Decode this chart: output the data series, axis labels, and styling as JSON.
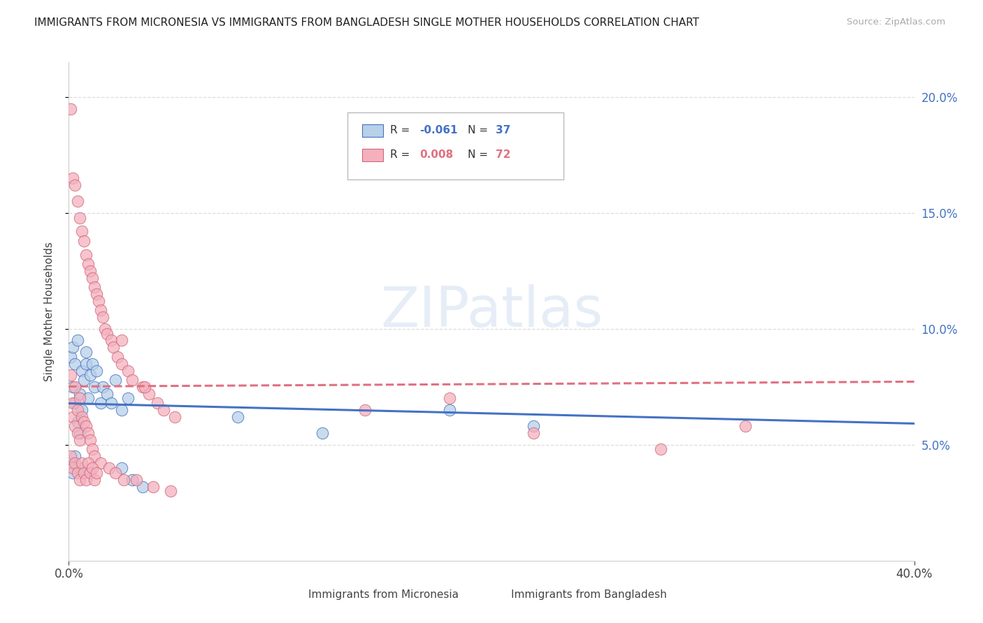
{
  "title": "IMMIGRANTS FROM MICRONESIA VS IMMIGRANTS FROM BANGLADESH SINGLE MOTHER HOUSEHOLDS CORRELATION CHART",
  "source": "Source: ZipAtlas.com",
  "ylabel": "Single Mother Households",
  "xlim": [
    0.0,
    0.4
  ],
  "ylim": [
    0.0,
    0.215
  ],
  "yticks": [
    0.05,
    0.1,
    0.15,
    0.2
  ],
  "ytick_labels": [
    "5.0%",
    "10.0%",
    "15.0%",
    "20.0%"
  ],
  "xtick_labels": [
    "0.0%",
    "40.0%"
  ],
  "legend_blue_r": "-0.061",
  "legend_blue_n": "37",
  "legend_pink_r": "0.008",
  "legend_pink_n": "72",
  "legend_label_blue": "Immigrants from Micronesia",
  "legend_label_pink": "Immigrants from Bangladesh",
  "color_blue_fill": "#b8d0e8",
  "color_blue_edge": "#4472c4",
  "color_pink_fill": "#f4b0be",
  "color_pink_edge": "#d06878",
  "color_blue_line": "#4472c4",
  "color_pink_line": "#e07080",
  "grid_color": "#dddddd",
  "r_micro": -0.061,
  "r_bangla": 0.008,
  "micro_x": [
    0.001,
    0.002,
    0.002,
    0.003,
    0.003,
    0.004,
    0.004,
    0.005,
    0.005,
    0.006,
    0.006,
    0.007,
    0.008,
    0.008,
    0.009,
    0.01,
    0.011,
    0.012,
    0.013,
    0.015,
    0.016,
    0.018,
    0.02,
    0.022,
    0.025,
    0.028,
    0.001,
    0.002,
    0.003,
    0.005,
    0.08,
    0.12,
    0.18,
    0.22,
    0.025,
    0.03,
    0.035
  ],
  "micro_y": [
    0.088,
    0.075,
    0.092,
    0.068,
    0.085,
    0.06,
    0.095,
    0.055,
    0.072,
    0.065,
    0.082,
    0.078,
    0.09,
    0.085,
    0.07,
    0.08,
    0.085,
    0.075,
    0.082,
    0.068,
    0.075,
    0.072,
    0.068,
    0.078,
    0.065,
    0.07,
    0.042,
    0.038,
    0.045,
    0.04,
    0.062,
    0.055,
    0.065,
    0.058,
    0.04,
    0.035,
    0.032
  ],
  "bangla_x": [
    0.001,
    0.001,
    0.002,
    0.002,
    0.002,
    0.003,
    0.003,
    0.003,
    0.004,
    0.004,
    0.004,
    0.005,
    0.005,
    0.005,
    0.006,
    0.006,
    0.007,
    0.007,
    0.008,
    0.008,
    0.009,
    0.009,
    0.01,
    0.01,
    0.011,
    0.011,
    0.012,
    0.012,
    0.013,
    0.014,
    0.015,
    0.015,
    0.016,
    0.017,
    0.018,
    0.019,
    0.02,
    0.021,
    0.022,
    0.023,
    0.025,
    0.026,
    0.028,
    0.03,
    0.032,
    0.035,
    0.038,
    0.04,
    0.042,
    0.045,
    0.048,
    0.05,
    0.001,
    0.002,
    0.003,
    0.004,
    0.005,
    0.006,
    0.007,
    0.008,
    0.009,
    0.01,
    0.011,
    0.012,
    0.013,
    0.14,
    0.18,
    0.22,
    0.28,
    0.32,
    0.036,
    0.025
  ],
  "bangla_y": [
    0.195,
    0.08,
    0.165,
    0.068,
    0.062,
    0.162,
    0.075,
    0.058,
    0.155,
    0.065,
    0.055,
    0.148,
    0.07,
    0.052,
    0.142,
    0.062,
    0.138,
    0.06,
    0.132,
    0.058,
    0.128,
    0.055,
    0.125,
    0.052,
    0.122,
    0.048,
    0.118,
    0.045,
    0.115,
    0.112,
    0.108,
    0.042,
    0.105,
    0.1,
    0.098,
    0.04,
    0.095,
    0.092,
    0.038,
    0.088,
    0.085,
    0.035,
    0.082,
    0.078,
    0.035,
    0.075,
    0.072,
    0.032,
    0.068,
    0.065,
    0.03,
    0.062,
    0.045,
    0.04,
    0.042,
    0.038,
    0.035,
    0.042,
    0.038,
    0.035,
    0.042,
    0.038,
    0.04,
    0.035,
    0.038,
    0.065,
    0.07,
    0.055,
    0.048,
    0.058,
    0.075,
    0.095
  ]
}
